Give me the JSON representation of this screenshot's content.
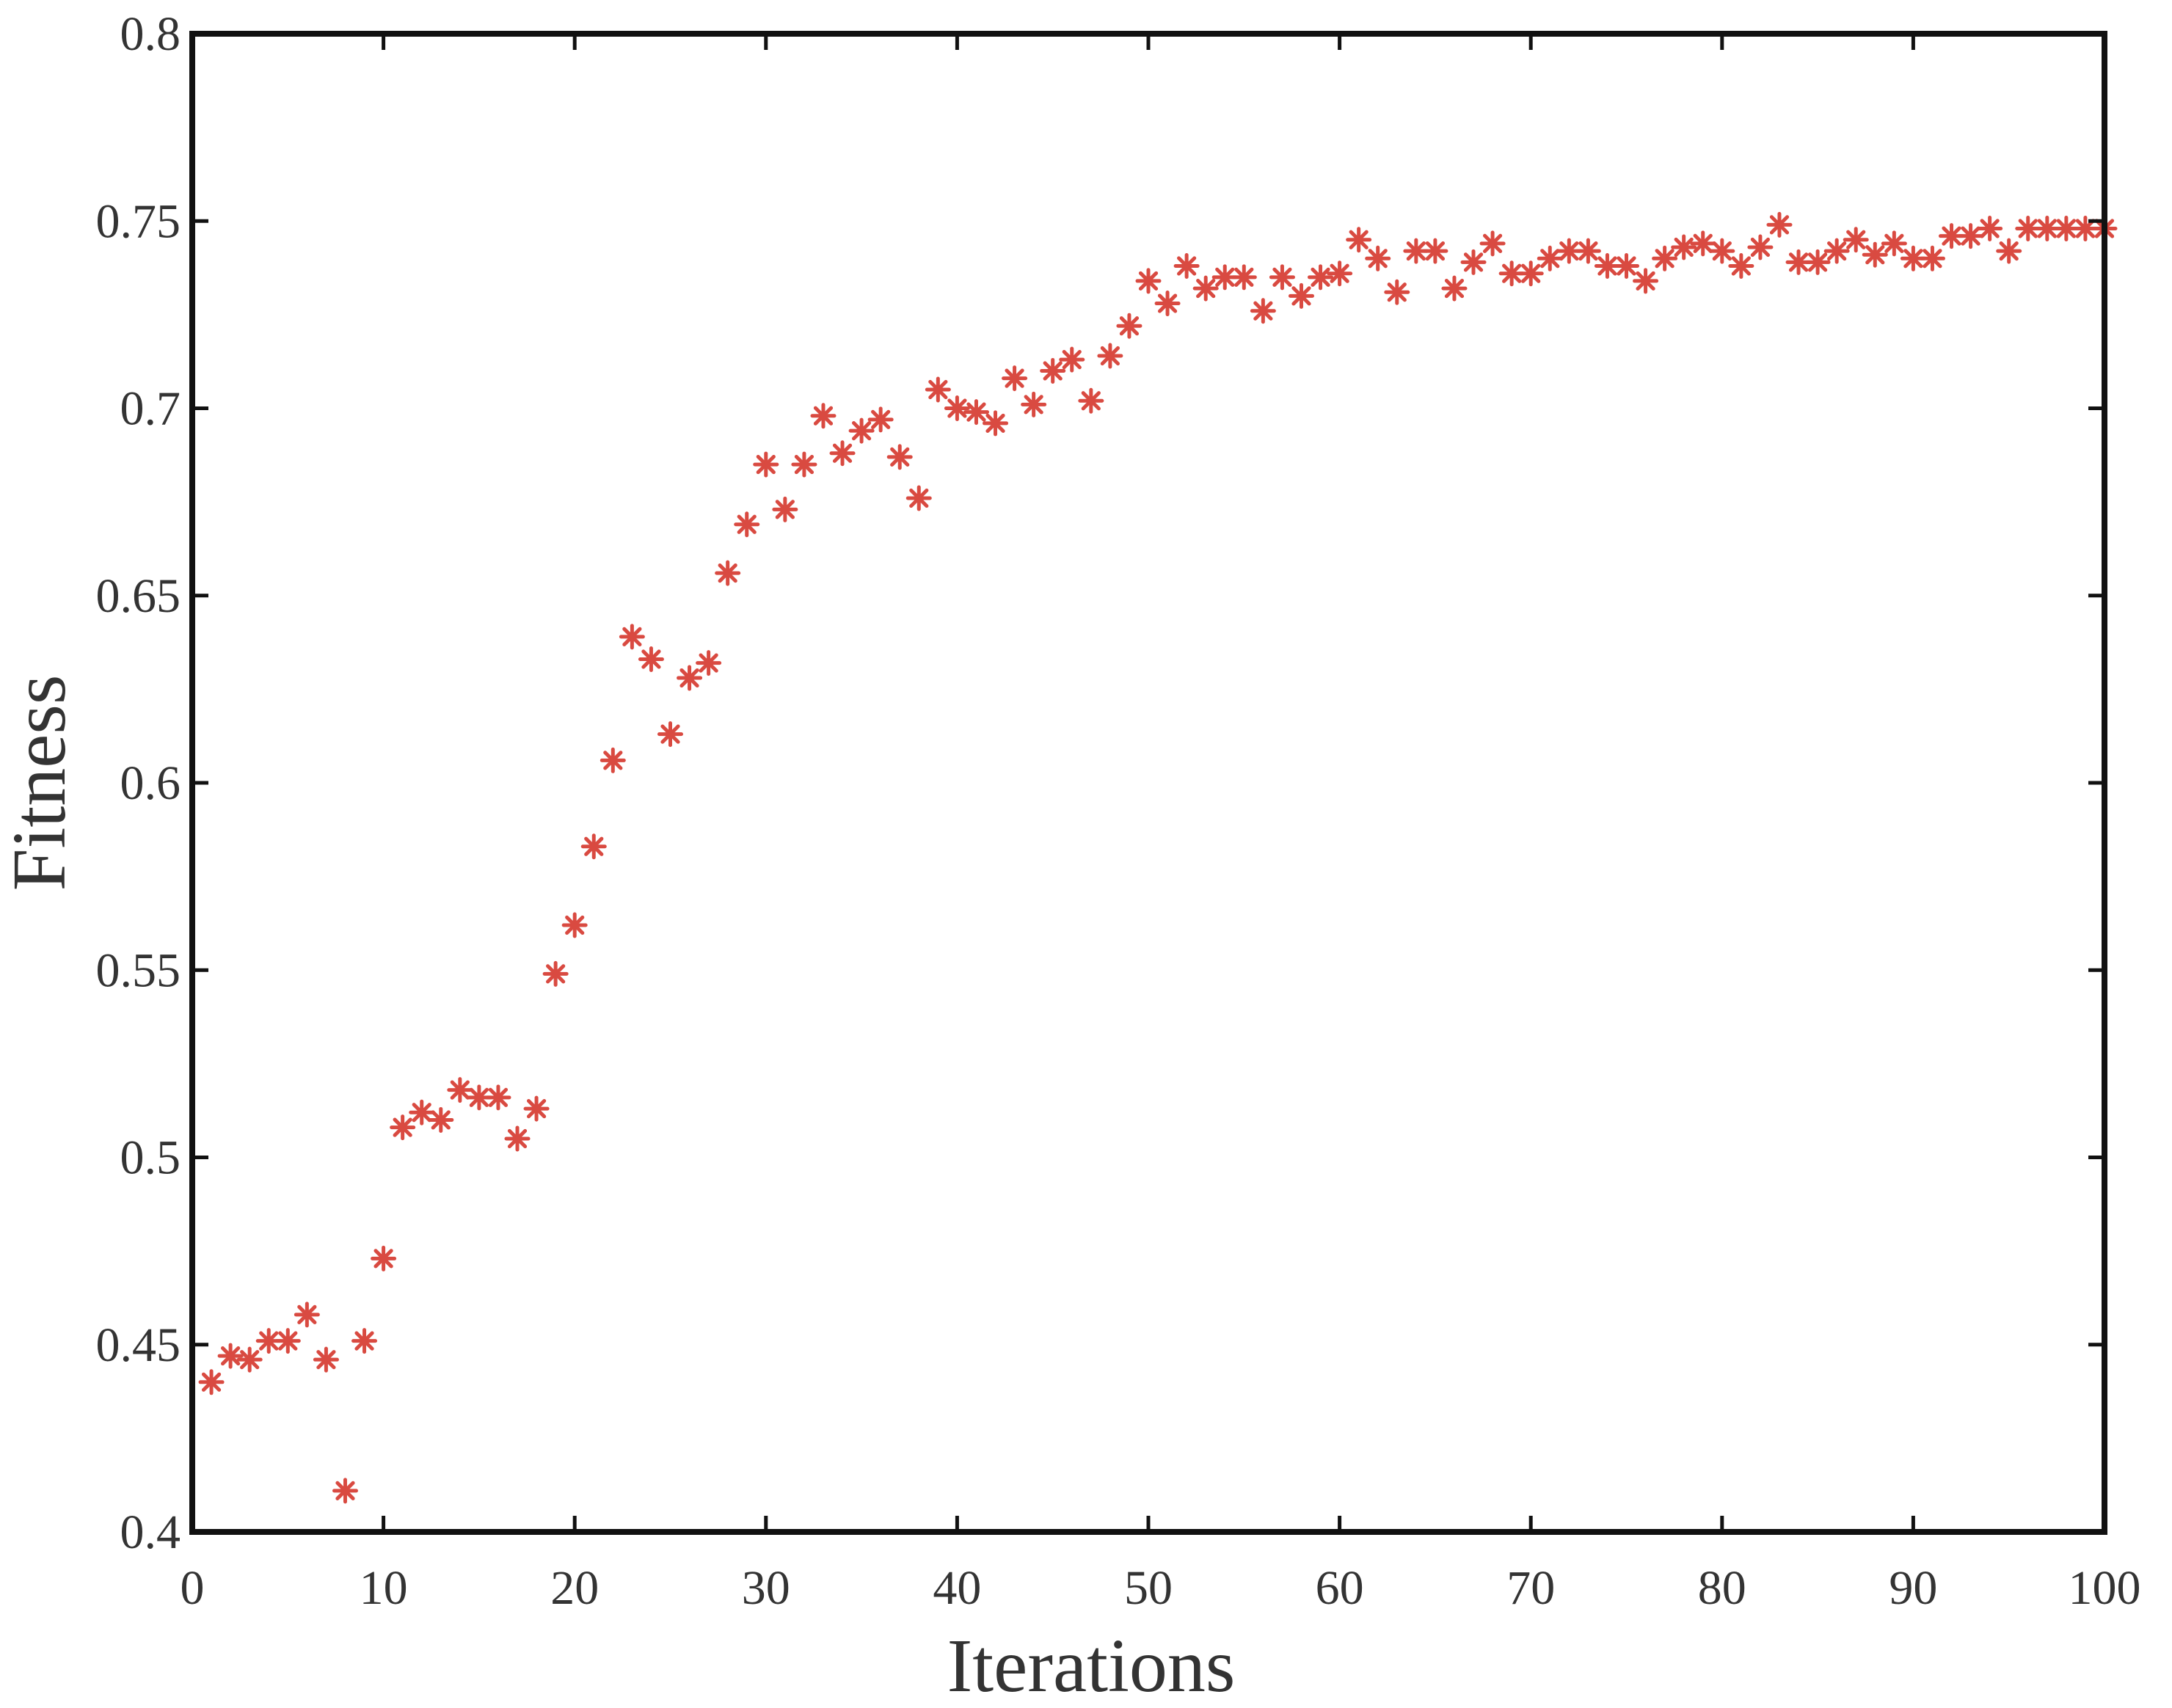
{
  "chart_data": {
    "type": "scatter",
    "xlabel": "Iterations",
    "ylabel": "Fitness",
    "xlim": [
      0,
      100
    ],
    "ylim": [
      0.4,
      0.8
    ],
    "x_ticks": [
      0,
      10,
      20,
      30,
      40,
      50,
      60,
      70,
      80,
      90,
      100
    ],
    "x_tick_labels": [
      "0",
      "10",
      "20",
      "30",
      "40",
      "50",
      "60",
      "70",
      "80",
      "90",
      "100"
    ],
    "y_ticks": [
      0.4,
      0.45,
      0.5,
      0.55,
      0.6,
      0.65,
      0.7,
      0.75,
      0.8
    ],
    "y_tick_labels": [
      "0.4",
      "0.45",
      "0.5",
      "0.55",
      "0.6",
      "0.65",
      "0.7",
      "0.75",
      "0.8"
    ],
    "grid": false,
    "marker": "asterisk",
    "marker_color": "#d94a41",
    "series": [
      {
        "x": [
          1,
          2,
          3,
          4,
          5,
          6,
          7,
          8,
          9,
          10,
          11,
          12,
          13,
          14,
          15,
          16,
          17,
          18,
          19,
          20,
          21,
          22,
          23,
          24,
          25,
          26,
          27,
          28,
          29,
          30,
          31,
          32,
          33,
          34,
          35,
          36,
          37,
          38,
          39,
          40,
          41,
          42,
          43,
          44,
          45,
          46,
          47,
          48,
          49,
          50,
          51,
          52,
          53,
          54,
          55,
          56,
          57,
          58,
          59,
          60,
          61,
          62,
          63,
          64,
          65,
          66,
          67,
          68,
          69,
          70,
          71,
          72,
          73,
          74,
          75,
          76,
          77,
          78,
          79,
          80,
          81,
          82,
          83,
          84,
          85,
          86,
          87,
          88,
          89,
          90,
          91,
          92,
          93,
          94,
          95,
          96,
          97,
          98,
          99,
          100
        ],
        "y": [
          0.44,
          0.447,
          0.446,
          0.451,
          0.451,
          0.458,
          0.446,
          0.411,
          0.451,
          0.473,
          0.508,
          0.512,
          0.51,
          0.518,
          0.516,
          0.516,
          0.505,
          0.513,
          0.549,
          0.562,
          0.583,
          0.606,
          0.639,
          0.633,
          0.613,
          0.628,
          0.632,
          0.656,
          0.669,
          0.685,
          0.673,
          0.685,
          0.698,
          0.688,
          0.694,
          0.697,
          0.687,
          0.676,
          0.705,
          0.7,
          0.699,
          0.696,
          0.708,
          0.701,
          0.71,
          0.713,
          0.702,
          0.714,
          0.722,
          0.734,
          0.728,
          0.738,
          0.732,
          0.735,
          0.735,
          0.726,
          0.735,
          0.73,
          0.735,
          0.736,
          0.745,
          0.74,
          0.731,
          0.742,
          0.742,
          0.732,
          0.739,
          0.744,
          0.736,
          0.736,
          0.74,
          0.742,
          0.742,
          0.738,
          0.738,
          0.734,
          0.74,
          0.743,
          0.744,
          0.742,
          0.738,
          0.743,
          0.749,
          0.739,
          0.739,
          0.742,
          0.745,
          0.741,
          0.744,
          0.74,
          0.74,
          0.746,
          0.746,
          0.748,
          0.742,
          0.748,
          0.748,
          0.748,
          0.748,
          0.748
        ]
      }
    ]
  }
}
